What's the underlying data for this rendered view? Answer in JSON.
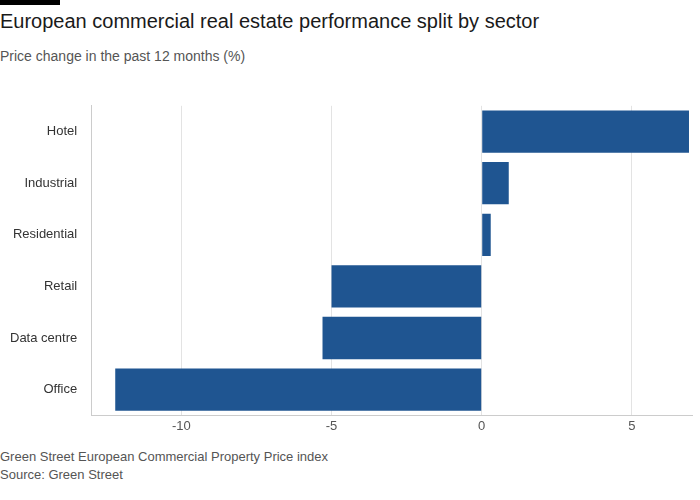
{
  "chart_data": {
    "type": "bar",
    "title": "European commercial real estate performance split by sector",
    "subtitle": "Price change in the past 12 months (%)",
    "footnotes": [
      "Green Street European Commercial Property Price index",
      "Source: Green Street"
    ],
    "orientation": "horizontal",
    "categories": [
      "Hotel",
      "Industrial",
      "Residential",
      "Retail",
      "Data centre",
      "Office"
    ],
    "values": [
      6.9,
      0.9,
      0.3,
      -5.0,
      -5.3,
      -12.2
    ],
    "color": "#1f5591",
    "xlim": [
      -13,
      7
    ],
    "xticks": [
      -10,
      -5,
      0,
      5
    ],
    "grid": true
  }
}
